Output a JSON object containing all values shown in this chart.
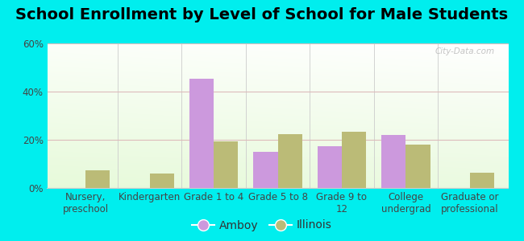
{
  "title": "School Enrollment by Level of School for Male Students",
  "categories": [
    "Nursery,\npreschool",
    "Kindergarten",
    "Grade 1 to 4",
    "Grade 5 to 8",
    "Grade 9 to\n12",
    "College\nundergrad",
    "Graduate or\nprofessional"
  ],
  "amboy_values": [
    0,
    0,
    45.5,
    15.0,
    17.5,
    22.0,
    0
  ],
  "illinois_values": [
    7.5,
    6.0,
    19.5,
    22.5,
    23.5,
    18.0,
    6.5
  ],
  "amboy_color": "#cc99dd",
  "illinois_color": "#bbbb77",
  "background_color": "#00eeee",
  "ylim": [
    0,
    60
  ],
  "yticks": [
    0,
    20,
    40,
    60
  ],
  "ytick_labels": [
    "0%",
    "20%",
    "40%",
    "60%"
  ],
  "legend_labels": [
    "Amboy",
    "Illinois"
  ],
  "title_fontsize": 14,
  "tick_fontsize": 8.5,
  "legend_fontsize": 10,
  "bar_width": 0.38,
  "watermark": "City-Data.com"
}
